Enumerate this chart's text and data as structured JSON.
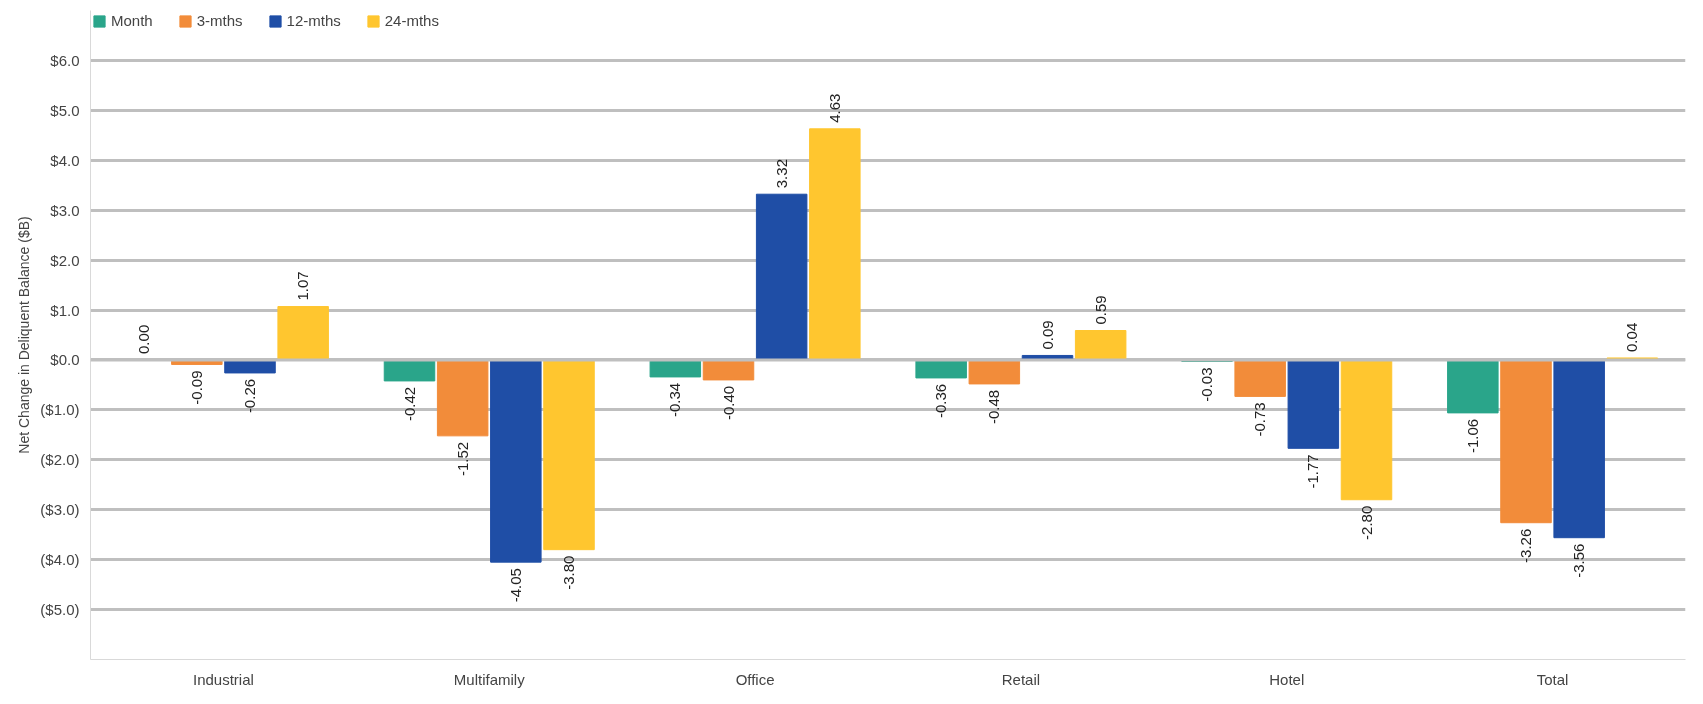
{
  "chart_data": {
    "type": "bar",
    "ylabel": "Net Change in Deliquent Balance ($B)",
    "categories": [
      "Industrial",
      "Multifamily",
      "Office",
      "Retail",
      "Hotel",
      "Total"
    ],
    "series": [
      {
        "name": "Month",
        "color": "#2aa58a",
        "values": [
          0.0,
          -0.42,
          -0.34,
          -0.36,
          -0.03,
          -1.06
        ],
        "value_labels": [
          "0.00",
          "-0.42",
          "-0.34",
          "-0.36",
          "-0.03",
          "-1.06"
        ]
      },
      {
        "name": "3-mths",
        "color": "#f28c3a",
        "values": [
          -0.09,
          -1.52,
          -0.4,
          -0.48,
          -0.73,
          -3.26
        ],
        "value_labels": [
          "-0.09",
          "-1.52",
          "-0.40",
          "-0.48",
          "-0.73",
          "-3.26"
        ]
      },
      {
        "name": "12-mths",
        "color": "#1f4ea6",
        "values": [
          -0.26,
          -4.05,
          3.32,
          0.09,
          -1.77,
          -3.56
        ],
        "value_labels": [
          "-0.26",
          "-4.05",
          "3.32",
          "0.09",
          "-1.77",
          "-3.56"
        ]
      },
      {
        "name": "24-mths",
        "color": "#ffc62f",
        "values": [
          1.07,
          -3.8,
          4.63,
          0.59,
          -2.8,
          0.04
        ],
        "value_labels": [
          "1.07",
          "-3.80",
          "4.63",
          "0.59",
          "-2.80",
          "0.04"
        ]
      }
    ],
    "ylim": [
      -6.0,
      7.0
    ],
    "yticks": [
      {
        "value": -5,
        "label": "($5.0)"
      },
      {
        "value": -4,
        "label": "($4.0)"
      },
      {
        "value": -3,
        "label": "($3.0)"
      },
      {
        "value": -2,
        "label": "($2.0)"
      },
      {
        "value": -1,
        "label": "($1.0)"
      },
      {
        "value": 0,
        "label": "$0.0"
      },
      {
        "value": 1,
        "label": "$1.0"
      },
      {
        "value": 2,
        "label": "$2.0"
      },
      {
        "value": 3,
        "label": "$3.0"
      },
      {
        "value": 4,
        "label": "$4.0"
      },
      {
        "value": 5,
        "label": "$5.0"
      },
      {
        "value": 6,
        "label": "$6.0"
      }
    ],
    "grid": "y",
    "legend": "top left"
  }
}
